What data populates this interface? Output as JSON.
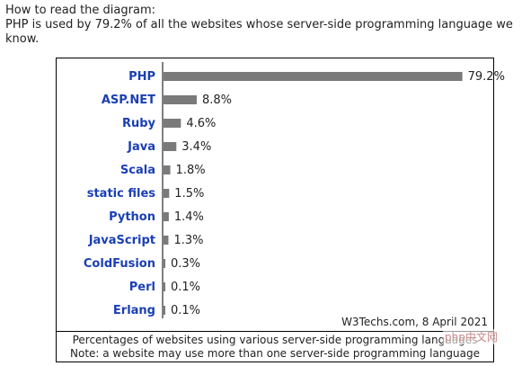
{
  "intro": {
    "heading": "How to read the diagram:",
    "text": "PHP is used by 79.2% of all the websites whose server-side programming language we know."
  },
  "chart_data": {
    "type": "bar",
    "orientation": "horizontal",
    "categories": [
      "PHP",
      "ASP.NET",
      "Ruby",
      "Java",
      "Scala",
      "static files",
      "Python",
      "JavaScript",
      "ColdFusion",
      "Perl",
      "Erlang"
    ],
    "values": [
      79.2,
      8.8,
      4.6,
      3.4,
      1.8,
      1.5,
      1.4,
      1.3,
      0.3,
      0.1,
      0.1
    ],
    "value_labels": [
      "79.2%",
      "8.8%",
      "4.6%",
      "3.4%",
      "1.8%",
      "1.5%",
      "1.4%",
      "1.3%",
      "0.3%",
      "0.1%",
      "0.1%"
    ],
    "xlim": [
      0,
      100
    ],
    "source": "W3Techs.com, 8 April 2021",
    "colors": {
      "bar": "#7a7a7a",
      "category": "#1a3fb5",
      "axis": "#000000"
    }
  },
  "caption": {
    "line1": "Percentages of websites using various server-side programming languages",
    "line2": "Note: a website may use more than one server-side programming language"
  },
  "watermark": "php中文网"
}
